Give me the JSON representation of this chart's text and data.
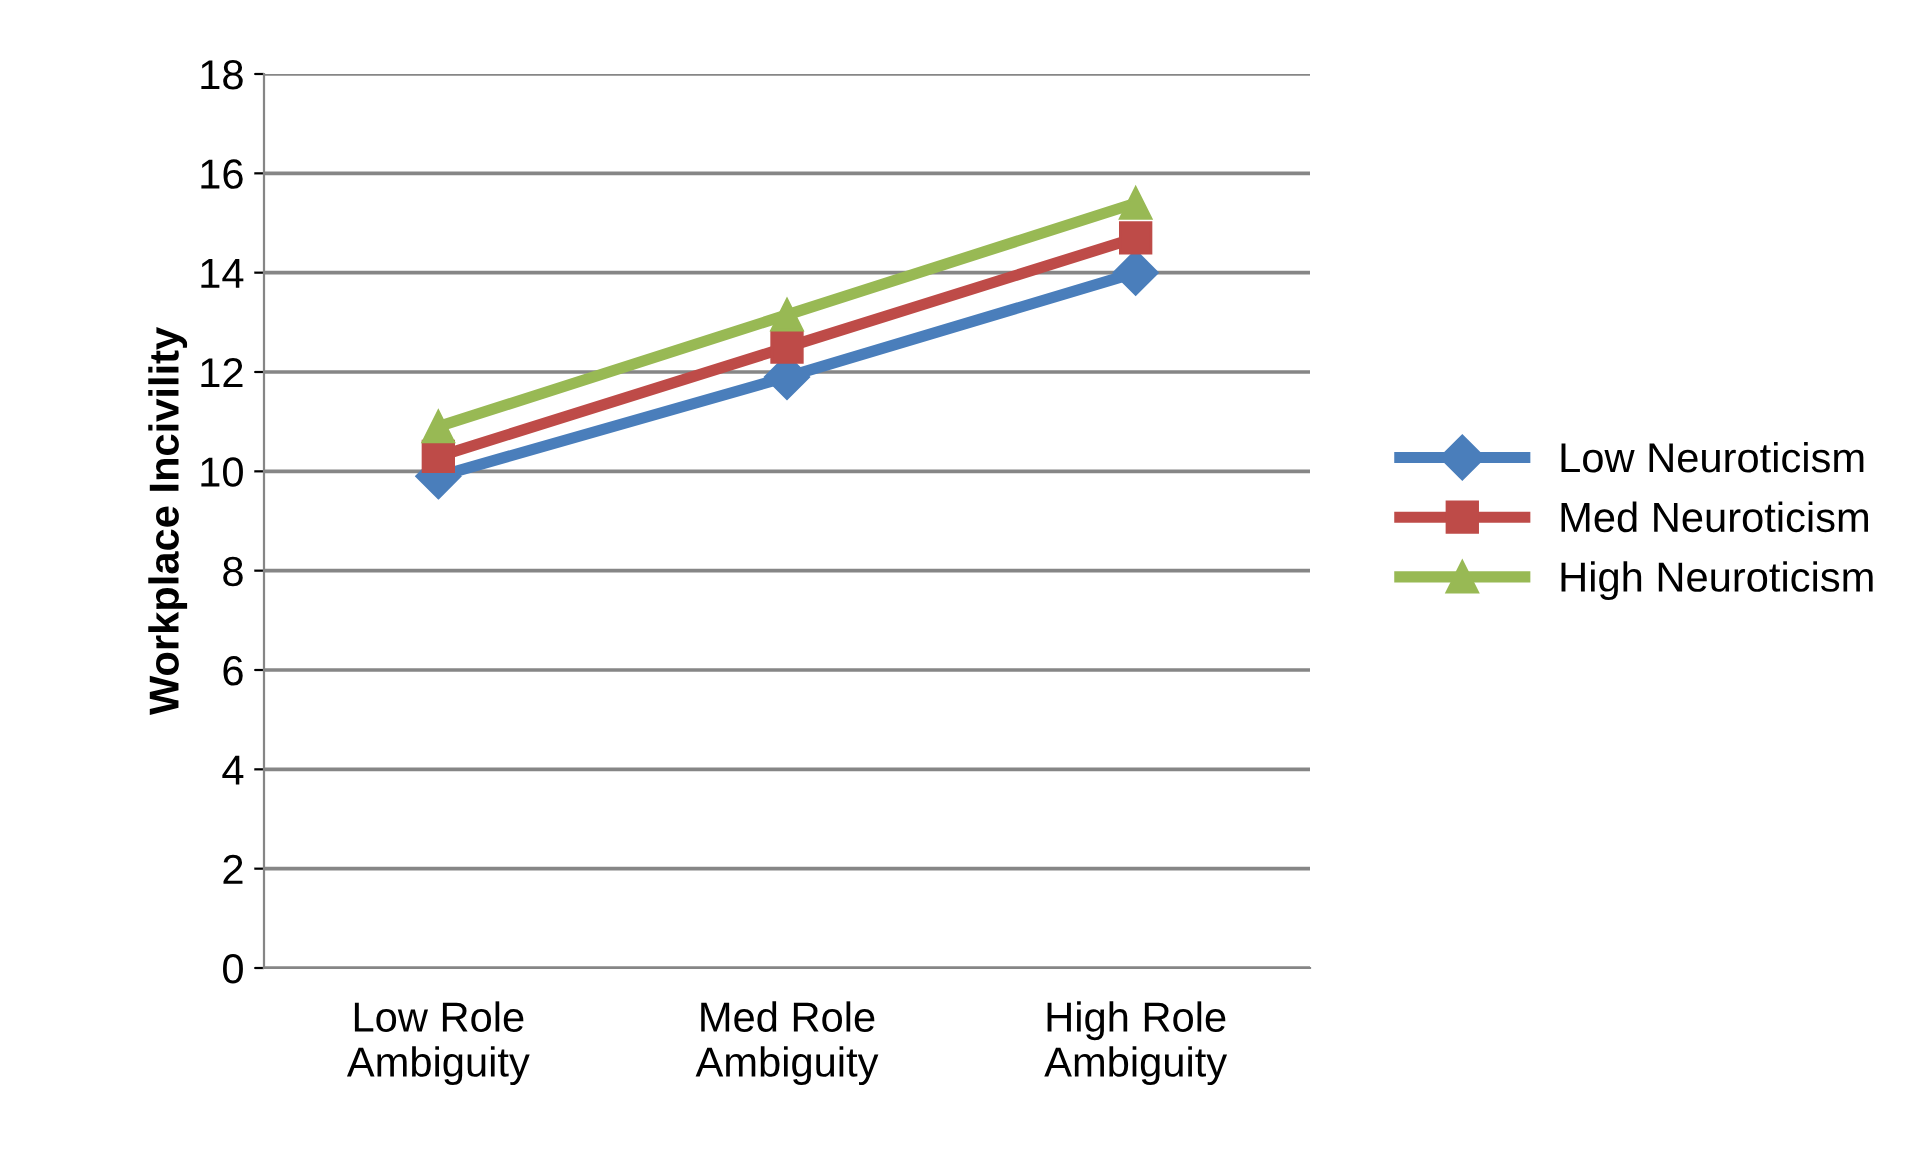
{
  "chart_data": {
    "type": "line",
    "ylabel": "Workplace Incivility",
    "categories": [
      "Low Role\nAmbiguity",
      "Med Role\nAmbiguity",
      "High Role\nAmbiguity"
    ],
    "series": [
      {
        "name": "Low Neuroticism",
        "color": "#4a7ebb",
        "values": [
          9.9,
          11.9,
          14.0
        ],
        "marker": "diamond"
      },
      {
        "name": "Med Neuroticism",
        "color": "#be4b48",
        "values": [
          10.3,
          12.5,
          14.7
        ],
        "marker": "square"
      },
      {
        "name": "High Neuroticism",
        "color": "#98b954",
        "values": [
          10.9,
          13.15,
          15.4
        ],
        "marker": "triangle"
      }
    ],
    "ylim": [
      0,
      18
    ],
    "yticks": [
      0,
      2,
      4,
      6,
      8,
      10,
      12,
      14,
      16,
      18
    ],
    "grid": "y",
    "legend": "right",
    "line_style": "solid"
  }
}
